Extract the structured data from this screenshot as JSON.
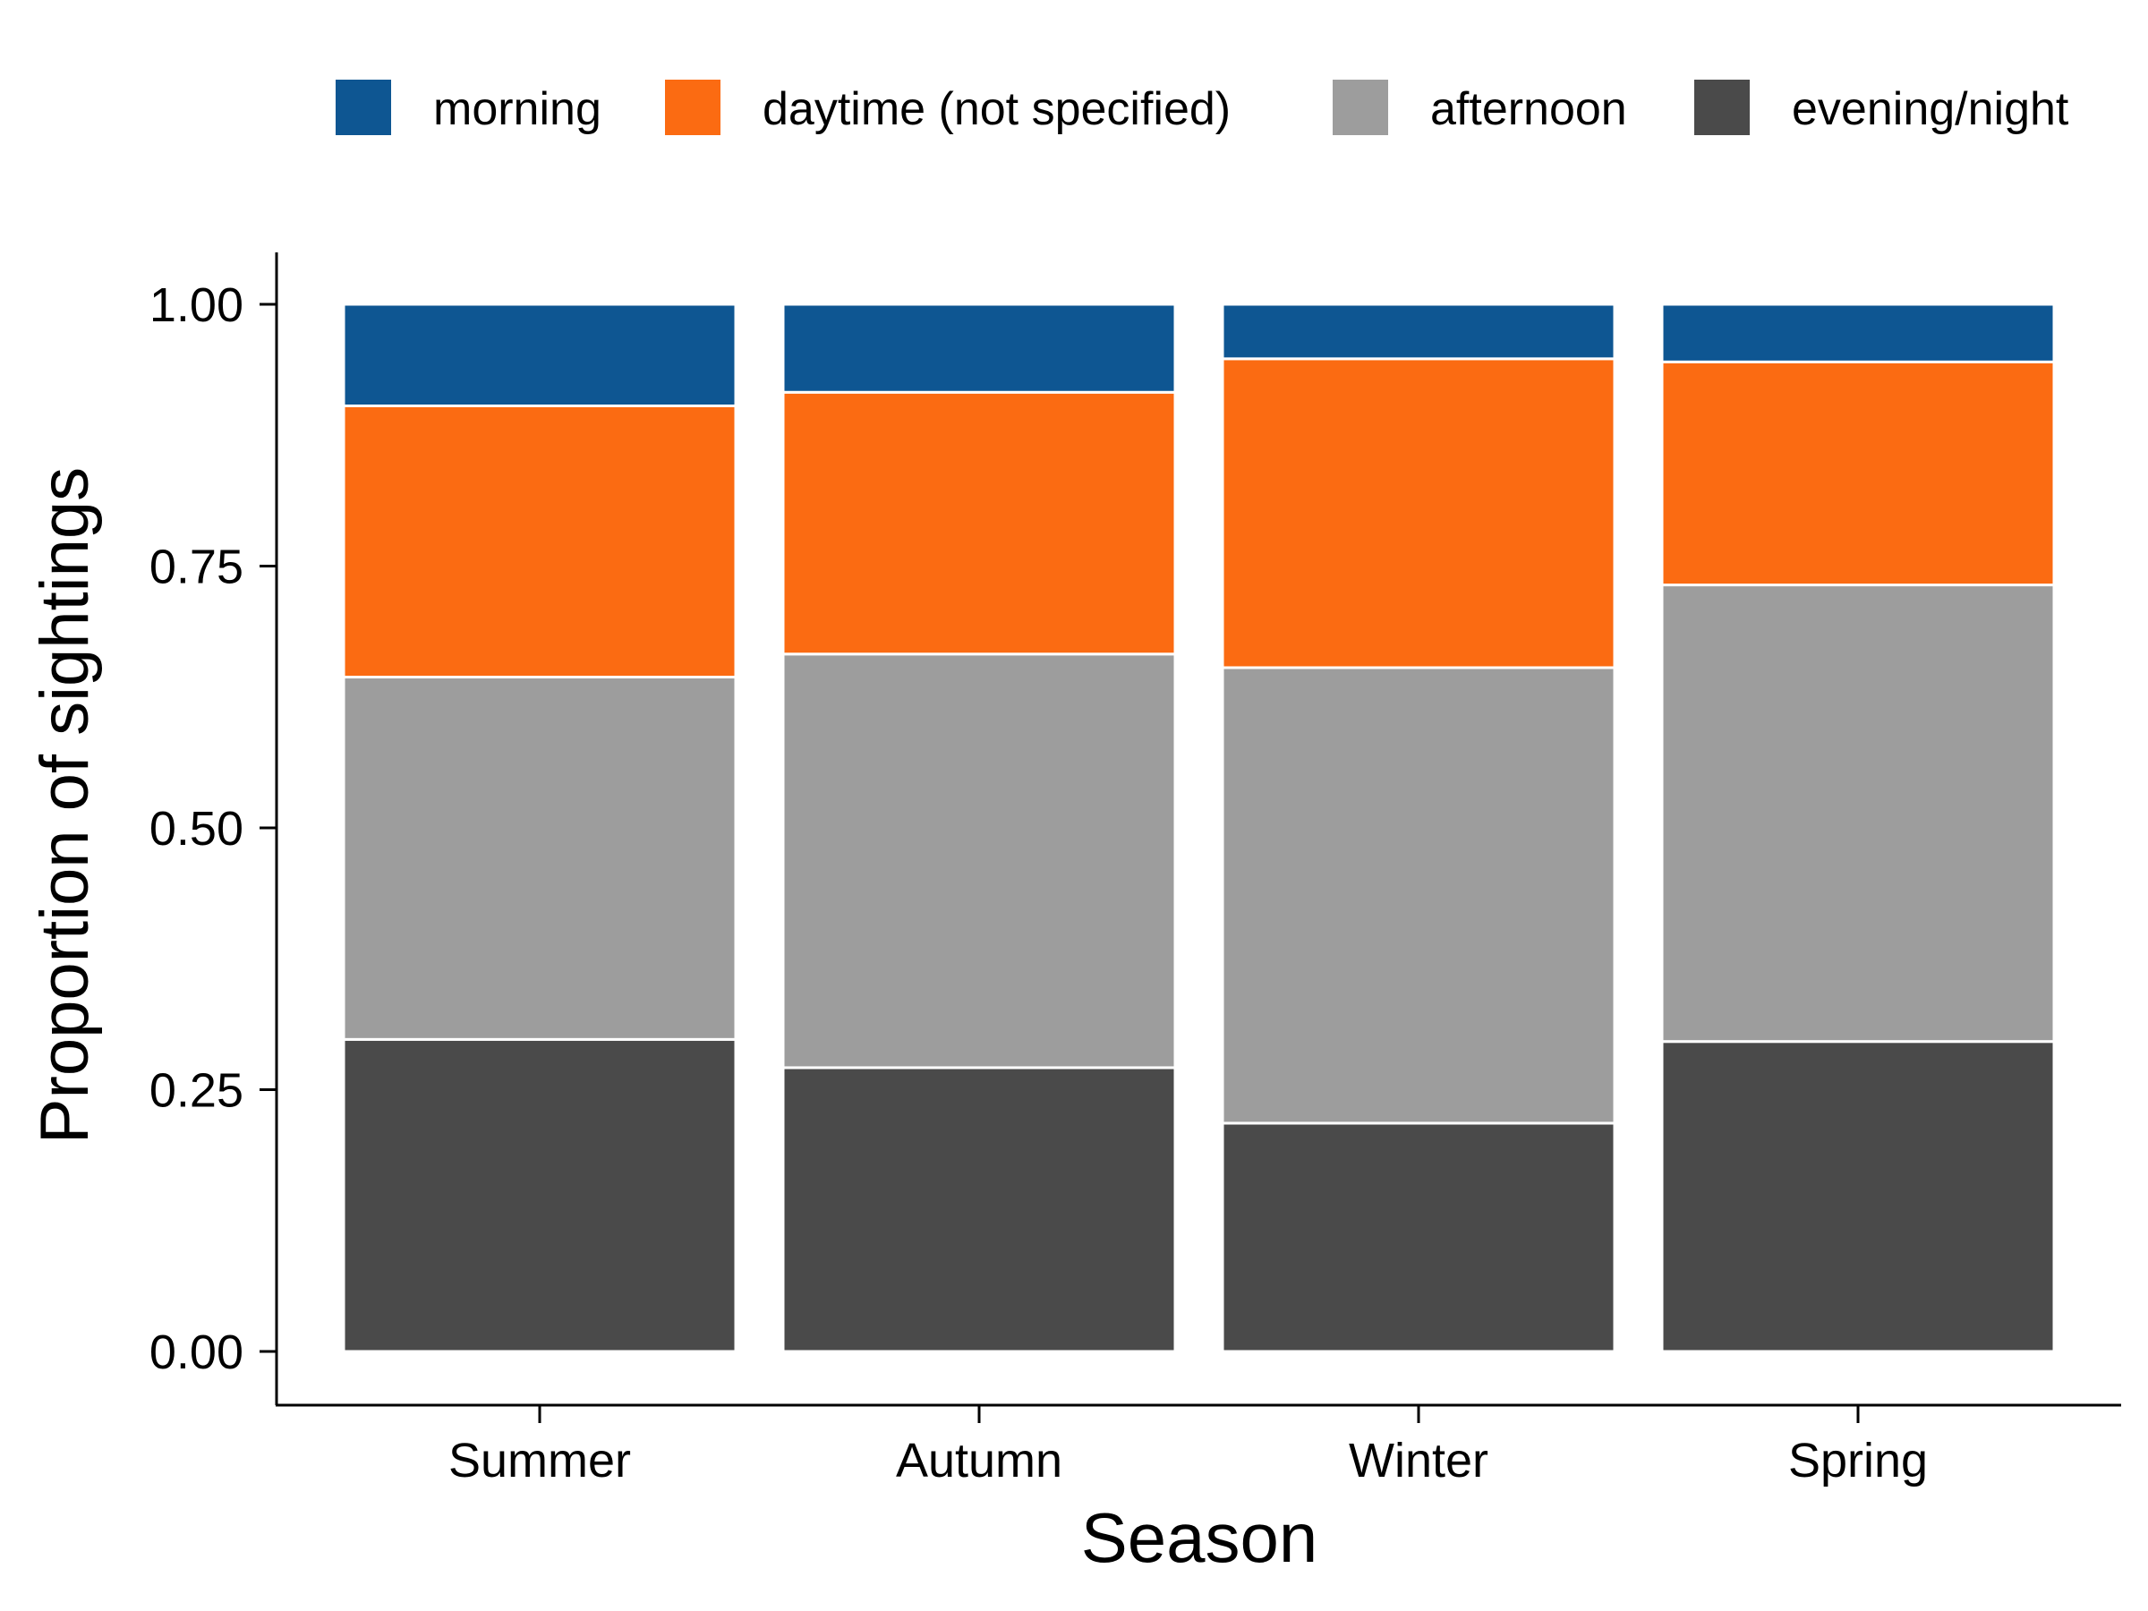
{
  "chart_data": {
    "type": "bar",
    "stacked": true,
    "categories": [
      "Summer",
      "Autumn",
      "Winter",
      "Spring"
    ],
    "series": [
      {
        "name": "evening/night",
        "color": "#4a4a4a",
        "values": [
          0.298,
          0.271,
          0.218,
          0.296
        ]
      },
      {
        "name": "afternoon",
        "color": "#9d9d9d",
        "values": [
          0.346,
          0.395,
          0.435,
          0.436
        ]
      },
      {
        "name": "daytime (not specified)",
        "color": "#fb6b12",
        "values": [
          0.259,
          0.25,
          0.295,
          0.213
        ]
      },
      {
        "name": "morning",
        "color": "#0e5692",
        "values": [
          0.097,
          0.084,
          0.052,
          0.055
        ]
      }
    ],
    "legend_order": [
      "morning",
      "daytime (not specified)",
      "afternoon",
      "evening/night"
    ],
    "legend_position": "top-right",
    "xlabel": "Season",
    "ylabel": "Proportion of sightings",
    "ylim": [
      0,
      1
    ],
    "yticks": [
      "0.00",
      "0.25",
      "0.50",
      "0.75",
      "1.00"
    ],
    "grid": false
  }
}
